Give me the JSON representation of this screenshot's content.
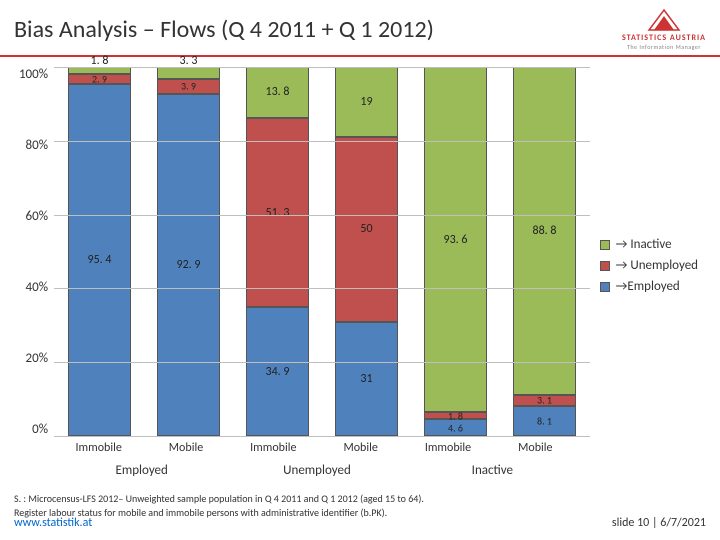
{
  "header": {
    "title": "Bias Analysis – Flows (Q 4 2011 + Q 1 2012)",
    "logo": {
      "text1": "STATISTICS AUSTRIA",
      "text2": "The Information Manager"
    }
  },
  "chart": {
    "type": "stacked-bar",
    "ylim": [
      0,
      100
    ],
    "ytick_step": 20,
    "y_ticks": [
      "100%",
      "80%",
      "60%",
      "40%",
      "20%",
      "0%"
    ],
    "colors": {
      "employed": "#4f81bd",
      "unemployed": "#c0504d",
      "inactive": "#9bbb59",
      "grid": "#bfbfbf",
      "background": "#ffffff"
    },
    "legend": [
      {
        "label": "→ Inactive",
        "series": "inactive"
      },
      {
        "label": "→ Unemployed",
        "series": "unemployed"
      },
      {
        "label": "→Employed",
        "series": "employed"
      }
    ],
    "x_groups": [
      "Employed",
      "Unemployed",
      "Inactive"
    ],
    "x_ticks": [
      "Immobile",
      "Mobile",
      "Immobile",
      "Mobile",
      "Immobile",
      "Mobile"
    ],
    "bars": [
      {
        "segments": [
          {
            "series": "employed",
            "value": 95.4,
            "label": "95. 4",
            "label_pos": "center"
          },
          {
            "series": "unemployed",
            "value": 2.9,
            "label": "2. 9",
            "label_pos": "center-sm"
          },
          {
            "series": "inactive",
            "value": 1.8,
            "label": "1. 8",
            "label_pos": "above"
          }
        ]
      },
      {
        "segments": [
          {
            "series": "employed",
            "value": 92.9,
            "label": "92. 9",
            "label_pos": "center"
          },
          {
            "series": "unemployed",
            "value": 3.9,
            "label": "3. 9",
            "label_pos": "center-sm"
          },
          {
            "series": "inactive",
            "value": 3.3,
            "label": "3. 3",
            "label_pos": "above"
          }
        ]
      },
      {
        "segments": [
          {
            "series": "employed",
            "value": 34.9,
            "label": "34. 9",
            "label_pos": "center"
          },
          {
            "series": "unemployed",
            "value": 51.3,
            "label": "51. 3",
            "label_pos": "center"
          },
          {
            "series": "inactive",
            "value": 13.8,
            "label": "13. 8",
            "label_pos": "center"
          }
        ]
      },
      {
        "segments": [
          {
            "series": "employed",
            "value": 31,
            "label": "31",
            "label_pos": "center"
          },
          {
            "series": "unemployed",
            "value": 50,
            "label": "50",
            "label_pos": "center"
          },
          {
            "series": "inactive",
            "value": 19,
            "label": "19",
            "label_pos": "center"
          }
        ]
      },
      {
        "segments": [
          {
            "series": "employed",
            "value": 4.6,
            "label": "4. 6",
            "label_pos": "center-sm"
          },
          {
            "series": "unemployed",
            "value": 1.8,
            "label": "1. 8",
            "label_pos": "center-sm"
          },
          {
            "series": "inactive",
            "value": 93.6,
            "label": "93. 6",
            "label_pos": "center"
          }
        ]
      },
      {
        "segments": [
          {
            "series": "employed",
            "value": 8.1,
            "label": "8. 1",
            "label_pos": "center-sm"
          },
          {
            "series": "unemployed",
            "value": 3.1,
            "label": "3. 1",
            "label_pos": "center-sm"
          },
          {
            "series": "inactive",
            "value": 88.8,
            "label": "88. 8",
            "label_pos": "center"
          }
        ]
      }
    ]
  },
  "footnote": {
    "line1": "S. : Microcensus-LFS 2012– Unweighted sample  population in Q 4 2011 and Q 1 2012 (aged 15 to 64).",
    "line2": "Register labour status for mobile and immobile persons with administrative identifier (b.PK)."
  },
  "footer": {
    "url": "www.statistik.at",
    "slide": "slide 10",
    "date": "6/7/2021"
  }
}
